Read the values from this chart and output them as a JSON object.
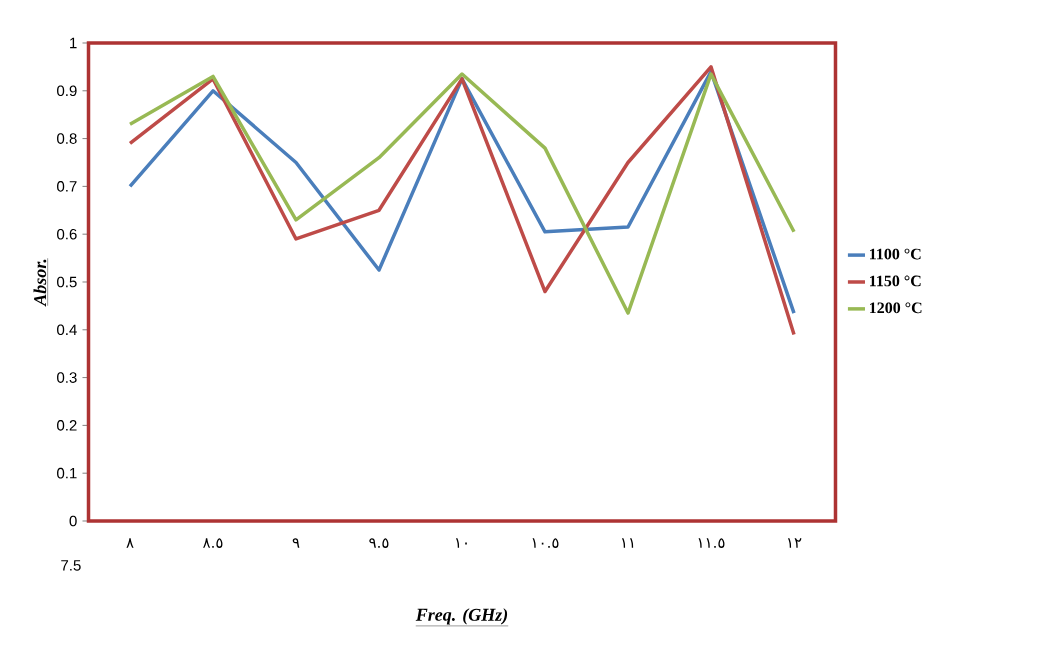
{
  "chart_data": {
    "type": "line",
    "xlabel": "Freq. (GHz)",
    "ylabel": "Absor.",
    "categories": [
      "٨",
      "٨.٥",
      "٩",
      "٩.٥",
      "١٠",
      "١٠.٥",
      "١١",
      "١١.٥",
      "١٢"
    ],
    "series": [
      {
        "name": "1100 °C",
        "color": "#4a7ebb",
        "values": [
          0.7,
          0.9,
          0.75,
          0.525,
          0.925,
          0.605,
          0.615,
          0.94,
          0.435
        ]
      },
      {
        "name": "1150 °C",
        "color": "#be4b48",
        "values": [
          0.79,
          0.925,
          0.59,
          0.65,
          0.925,
          0.48,
          0.75,
          0.95,
          0.39
        ]
      },
      {
        "name": "1200 °C",
        "color": "#98b954",
        "values": [
          0.83,
          0.93,
          0.63,
          0.76,
          0.935,
          0.78,
          0.435,
          0.935,
          0.605
        ]
      }
    ],
    "ylim": [
      0,
      1
    ],
    "yticks": [
      0,
      0.1,
      0.2,
      0.3,
      0.4,
      0.5,
      0.6,
      0.7,
      0.8,
      0.9,
      1
    ],
    "annotations": [
      "7.5"
    ],
    "legend": "right",
    "grid": false,
    "marker": "none",
    "line_style": "solid"
  }
}
